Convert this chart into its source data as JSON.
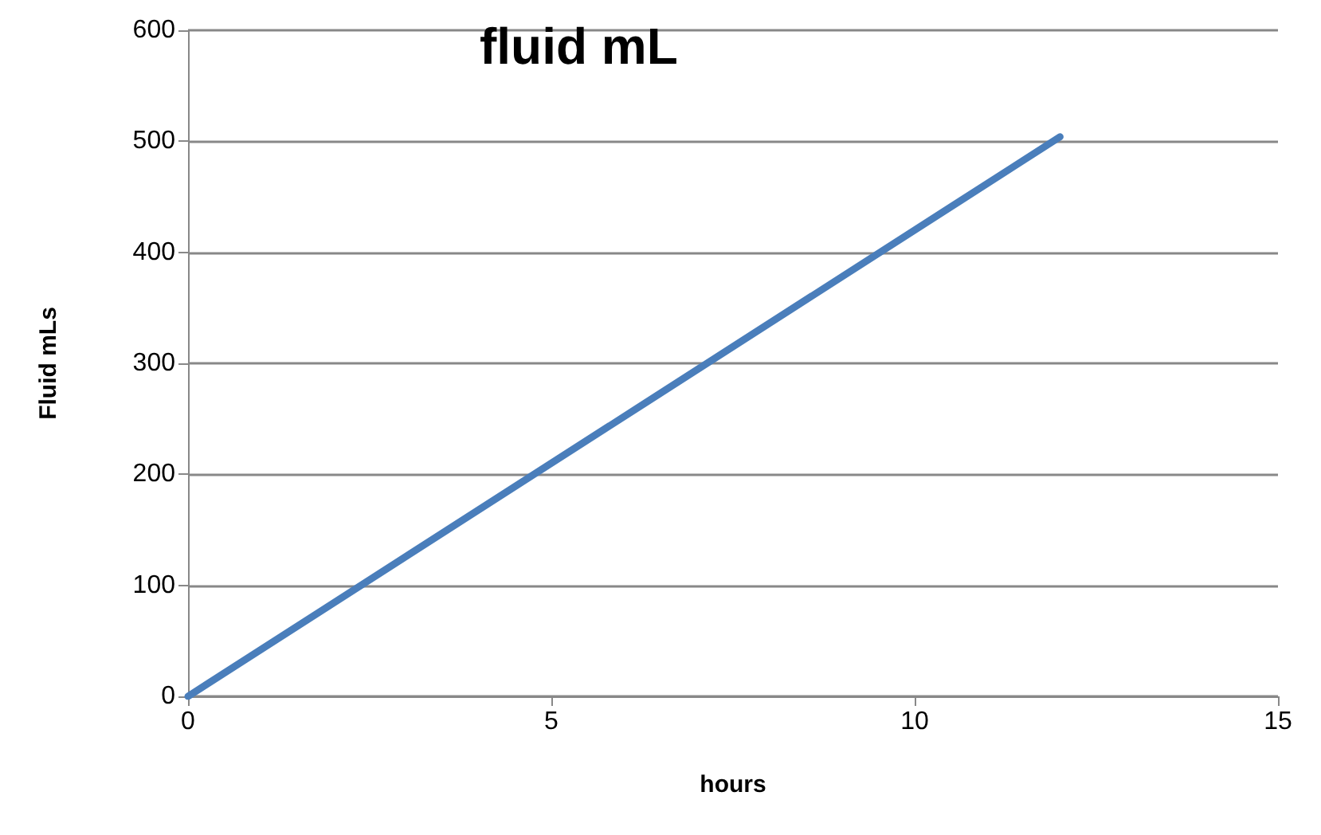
{
  "chart_data": {
    "type": "line",
    "title": "fluid mL",
    "xlabel": "hours",
    "ylabel": "Fluid mLs",
    "x": [
      0,
      12
    ],
    "series": [
      {
        "color": "#4a7ebb",
        "values": [
          0,
          504
        ]
      }
    ],
    "xlim": [
      0,
      15
    ],
    "xticks": [
      0,
      5,
      10,
      15
    ],
    "ylim": [
      0,
      600
    ],
    "yticks": [
      0,
      100,
      200,
      300,
      400,
      500,
      600
    ],
    "grid": "y",
    "marker": "none",
    "line_style": "solid"
  }
}
